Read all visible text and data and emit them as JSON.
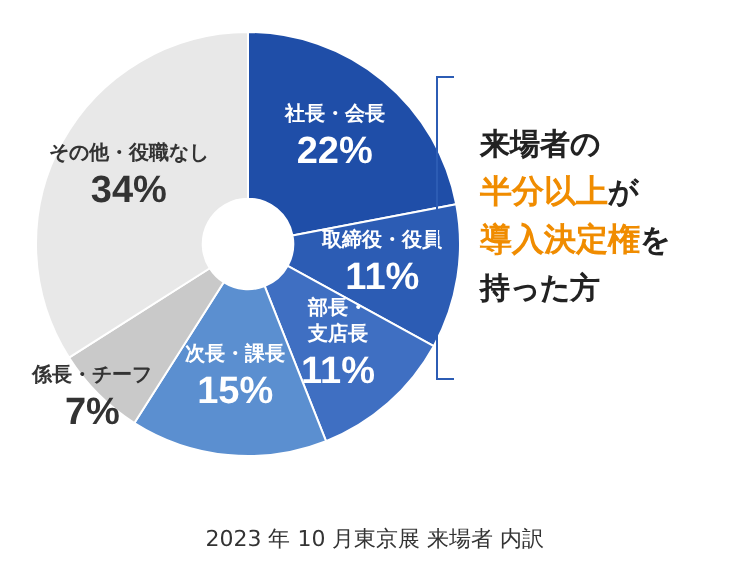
{
  "chart_data": {
    "type": "donut",
    "categories": [
      "社長・会長",
      "取締役・役員",
      "部長・支店長",
      "次長・課長",
      "係長・チーフ",
      "その他・役職なし"
    ],
    "values": [
      22,
      11,
      11,
      15,
      7,
      34
    ],
    "value_labels": [
      "22%",
      "11%",
      "11%",
      "15%",
      "7%",
      "34%"
    ],
    "colors": [
      "#1f4ea8",
      "#2c5cb4",
      "#3f6fc2",
      "#5b8fd0",
      "#c9c9c9",
      "#e8e8e8"
    ],
    "annotations": [
      "来場者の",
      "半分以上が",
      "導入決定権を",
      "持った方",
      "2023 年 10 月東京展 来場者 内訳"
    ],
    "legend": false
  }
}
